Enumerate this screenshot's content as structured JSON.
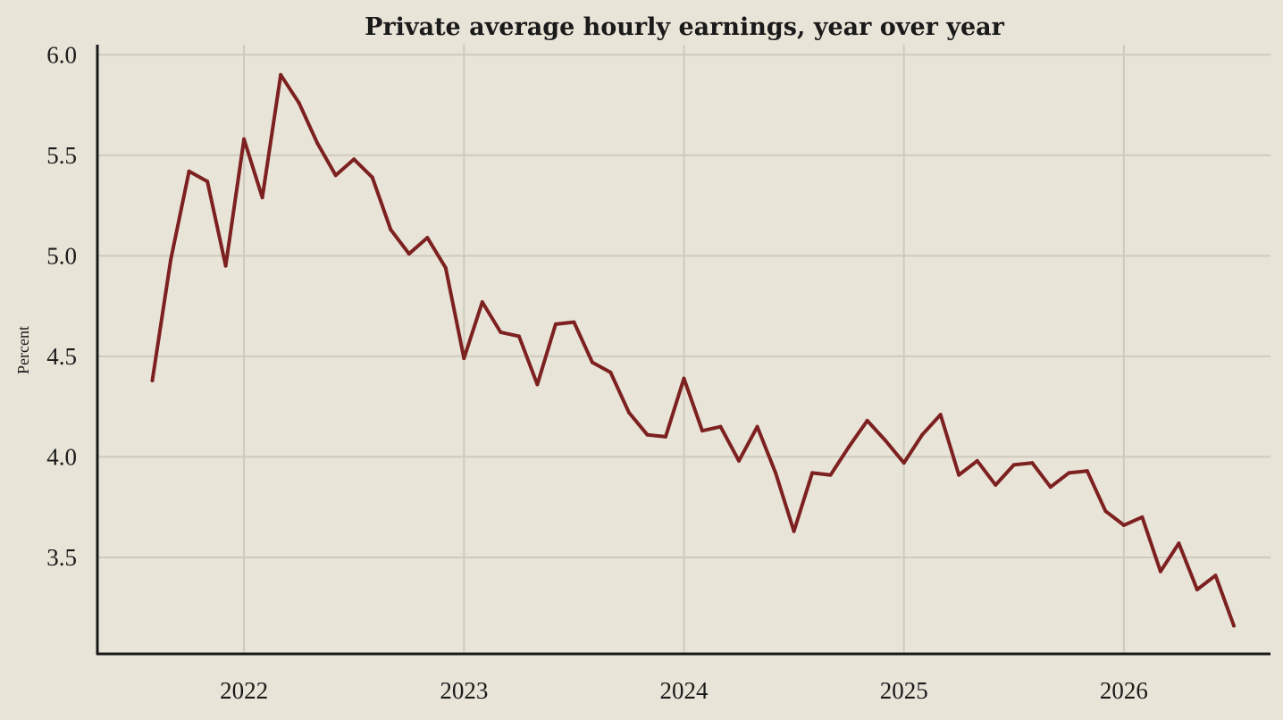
{
  "chart_data": {
    "type": "line",
    "title": "Private average hourly earnings, year over year",
    "xlabel": "",
    "ylabel": "Percent",
    "x_ticks": [
      "2022",
      "2023",
      "2024",
      "2025",
      "2026"
    ],
    "y_ticks": [
      "3.5",
      "4.0",
      "4.5",
      "5.0",
      "5.5",
      "6.0"
    ],
    "ylim": [
      3.02,
      6.05
    ],
    "xlim": [
      "2021-05",
      "2026-09"
    ],
    "grid": true,
    "colors": {
      "series": "#7d2020",
      "background": "#e8e4d8"
    },
    "x": [
      "2021-08",
      "2021-09",
      "2021-10",
      "2021-11",
      "2021-12",
      "2022-01",
      "2022-02",
      "2022-03",
      "2022-04",
      "2022-05",
      "2022-06",
      "2022-07",
      "2022-08",
      "2022-09",
      "2022-10",
      "2022-11",
      "2022-12",
      "2023-01",
      "2023-02",
      "2023-03",
      "2023-04",
      "2023-05",
      "2023-06",
      "2023-07",
      "2023-08",
      "2023-09",
      "2023-10",
      "2023-11",
      "2023-12",
      "2024-01",
      "2024-02",
      "2024-03",
      "2024-04",
      "2024-05",
      "2024-06",
      "2024-07",
      "2024-08",
      "2024-09",
      "2024-10",
      "2024-11",
      "2024-12",
      "2025-01",
      "2025-02",
      "2025-03",
      "2025-04",
      "2025-05",
      "2025-06",
      "2025-07",
      "2025-08",
      "2025-09",
      "2025-10",
      "2025-11",
      "2025-12",
      "2026-01",
      "2026-02",
      "2026-03",
      "2026-04",
      "2026-05",
      "2026-06",
      "2026-07"
    ],
    "series": [
      {
        "values": [
          4.38,
          4.98,
          5.42,
          5.37,
          4.95,
          5.58,
          5.29,
          5.9,
          5.76,
          5.56,
          5.4,
          5.48,
          5.39,
          5.13,
          5.01,
          5.09,
          4.94,
          4.49,
          4.77,
          4.62,
          4.6,
          4.36,
          4.66,
          4.67,
          4.47,
          4.42,
          4.22,
          4.11,
          4.1,
          4.39,
          4.13,
          4.15,
          3.98,
          4.15,
          3.92,
          3.63,
          3.92,
          3.91,
          4.05,
          4.18,
          4.08,
          3.97,
          4.11,
          4.21,
          3.91,
          3.98,
          3.86,
          3.96,
          3.97,
          3.85,
          3.92,
          3.93,
          3.73,
          3.66,
          3.7,
          3.43,
          3.57,
          3.34,
          3.41,
          3.16
        ]
      }
    ]
  }
}
